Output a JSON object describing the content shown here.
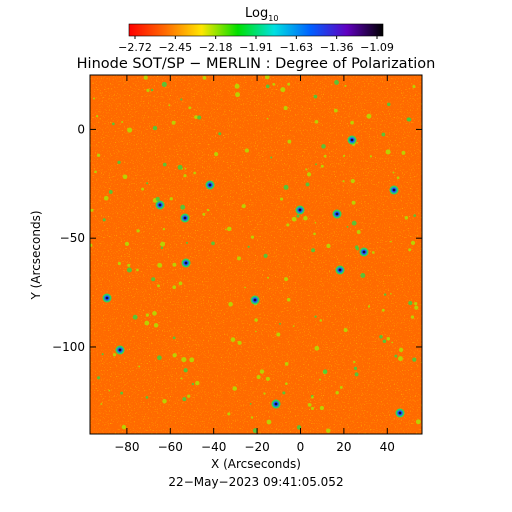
{
  "colorbar": {
    "label_main": "Log",
    "label_sub": "10",
    "ticks": [
      "−2.72",
      "−2.45",
      "−2.18",
      "−1.91",
      "−1.63",
      "−1.36",
      "−1.09"
    ],
    "colors": [
      "#ff0000",
      "#ff6a00",
      "#ffe600",
      "#00e000",
      "#00e0e0",
      "#0060ff",
      "#6000c0",
      "#000000"
    ]
  },
  "chart_data": {
    "type": "heatmap",
    "title": "Hinode SOT/SP − MERLIN : Degree of Polarization",
    "xlabel": "X (Arcseconds)",
    "ylabel": "Y (Arcseconds)",
    "xlim": [
      -97,
      56
    ],
    "ylim": [
      -140,
      25
    ],
    "xticks": [
      -80,
      -60,
      -40,
      -20,
      0,
      20,
      40
    ],
    "xtick_labels": [
      "−80",
      "−60",
      "−40",
      "−20",
      "0",
      "20",
      "40"
    ],
    "yticks": [
      0,
      -50,
      -100
    ],
    "ytick_labels": [
      "0",
      "−50",
      "−100"
    ],
    "value_range": [
      -2.72,
      -1.09
    ],
    "colorscale": "Log10 degree of polarization",
    "dominant_values": "mostly −2.7 to −2.2 (red/orange) with scattered green/blue/black patches up to −1.09",
    "timestamp": "22−May−2023 09:41:05.052"
  }
}
